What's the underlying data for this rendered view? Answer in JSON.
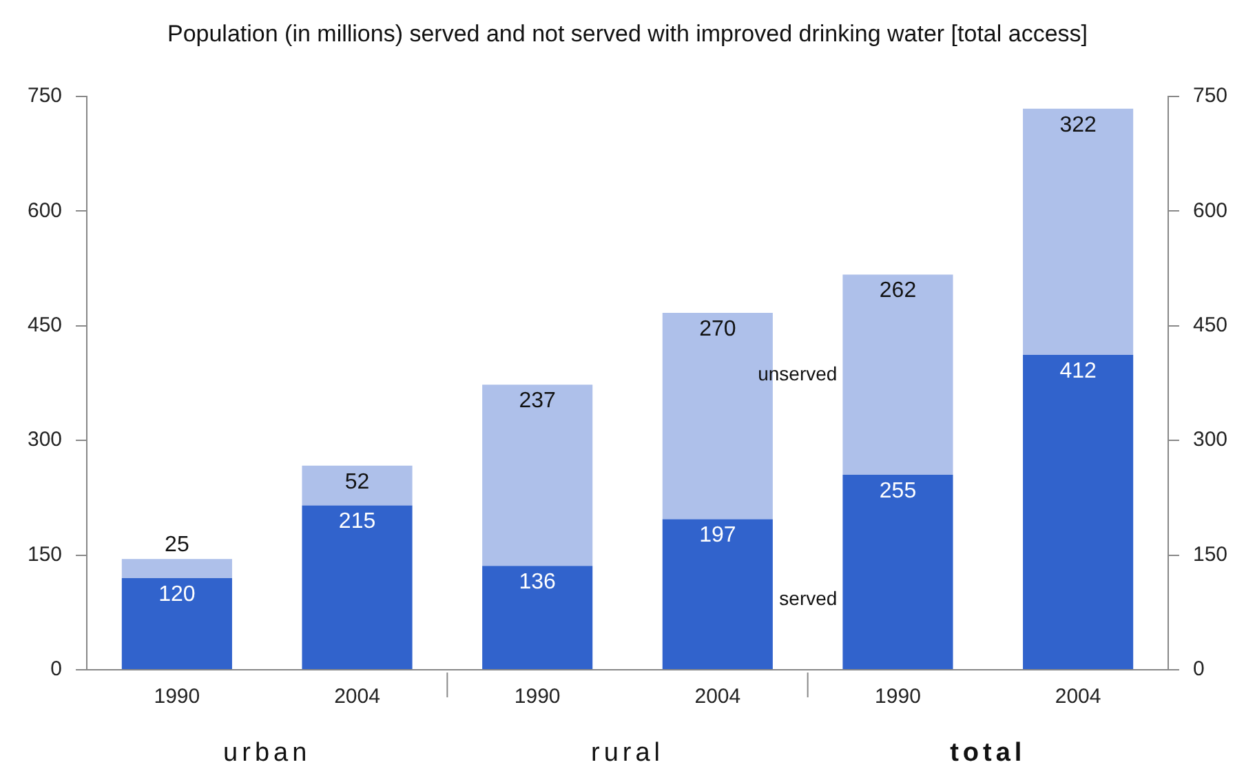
{
  "chart_data": {
    "type": "bar",
    "title": "Population (in millions) served and not served with improved drinking water [total access]",
    "categories": [
      "1990",
      "2004",
      "1990",
      "2004",
      "1990",
      "2004"
    ],
    "series": [
      {
        "name": "served",
        "color": "#3163cc",
        "values": [
          120,
          215,
          136,
          197,
          255,
          412
        ]
      },
      {
        "name": "unserved",
        "color": "#aec0ea",
        "values": [
          25,
          52,
          237,
          270,
          262,
          322
        ]
      }
    ],
    "stacked": true,
    "data_labels": true,
    "ylim": [
      0,
      750
    ],
    "yticks": [
      0,
      150,
      300,
      450,
      600,
      750
    ],
    "y2lim": [
      0,
      750
    ],
    "y2ticks": [
      0,
      150,
      300,
      450,
      600,
      750
    ],
    "annotations": [
      "urban",
      "rural",
      "total"
    ],
    "grid": false,
    "legend": false
  }
}
